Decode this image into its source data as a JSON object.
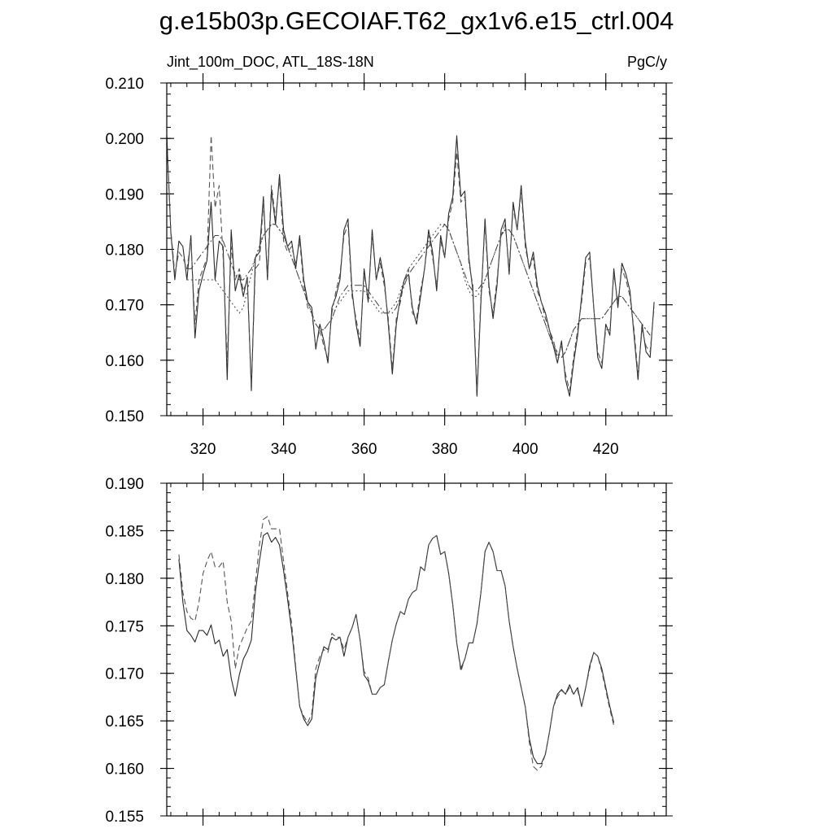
{
  "title": "g.e15b03p.GECOIAF.T62_gx1v6.e15_ctrl.004",
  "chart_data": [
    {
      "type": "line",
      "subtitle_left": "Jint_100m_DOC, ATL_18S-18N",
      "subtitle_right": "PgC/y",
      "xlim": [
        311,
        435
      ],
      "ylim": [
        0.15,
        0.21
      ],
      "yticks": [
        0.15,
        0.16,
        0.17,
        0.18,
        0.19,
        0.2,
        0.21
      ],
      "ytick_labels": [
        "0.150",
        "0.160",
        "0.170",
        "0.180",
        "0.190",
        "0.200",
        "0.210"
      ],
      "xticks": [
        320,
        340,
        360,
        380,
        400,
        420
      ],
      "xtick_labels": [
        "320",
        "340",
        "360",
        "380",
        "400",
        "420"
      ],
      "grid": false,
      "series": [
        {
          "style": "solid",
          "x0": 311,
          "values": [
            0.2005,
            0.183,
            0.1745,
            0.1815,
            0.1805,
            0.1745,
            0.1825,
            0.164,
            0.1725,
            0.1755,
            0.178,
            0.1885,
            0.1745,
            0.1815,
            0.1805,
            0.1565,
            0.1835,
            0.1725,
            0.1755,
            0.1715,
            0.175,
            0.1545,
            0.1785,
            0.1795,
            0.1895,
            0.1745,
            0.1905,
            0.1845,
            0.1935,
            0.1835,
            0.1805,
            0.1815,
            0.1765,
            0.1825,
            0.1745,
            0.1705,
            0.1695,
            0.162,
            0.1665,
            0.1635,
            0.1595,
            0.1695,
            0.1715,
            0.1745,
            0.1835,
            0.1855,
            0.1725,
            0.1665,
            0.1625,
            0.1765,
            0.1705,
            0.1835,
            0.1745,
            0.1785,
            0.1745,
            0.1665,
            0.1575,
            0.1665,
            0.1715,
            0.1745,
            0.1755,
            0.1695,
            0.1665,
            0.1715,
            0.1765,
            0.1835,
            0.1795,
            0.1725,
            0.1825,
            0.1785,
            0.1865,
            0.1895,
            0.2005,
            0.1895,
            0.1905,
            0.1785,
            0.1725,
            0.1535,
            0.1705,
            0.1855,
            0.1735,
            0.1675,
            0.1735,
            0.1835,
            0.1855,
            0.1755,
            0.1885,
            0.1835,
            0.1915,
            0.1815,
            0.1765,
            0.1795,
            0.1735,
            0.1705,
            0.1685,
            0.1655,
            0.1625,
            0.1595,
            0.1635,
            0.1565,
            0.1535,
            0.1595,
            0.1645,
            0.1715,
            0.1785,
            0.1795,
            0.1695,
            0.1605,
            0.1585,
            0.1665,
            0.1645,
            0.1765,
            0.1695,
            0.1775,
            0.1755,
            0.1725,
            0.1645,
            0.1565,
            0.1665,
            0.1615,
            0.1605,
            0.1705
          ]
        },
        {
          "style": "dashed",
          "x0": 311,
          "values": [
            0.2005,
            0.1835,
            0.1755,
            0.1795,
            0.1785,
            0.1765,
            0.1815,
            0.1665,
            0.1745,
            0.1765,
            0.1785,
            0.2005,
            0.1875,
            0.1915,
            0.1785,
            0.1595,
            0.1805,
            0.1745,
            0.1765,
            0.1725,
            0.1745,
            0.1555,
            0.1765,
            0.1775,
            0.1885,
            0.1755,
            0.1915,
            0.1855,
            0.1925,
            0.1815,
            0.1795,
            0.1805,
            0.1775,
            0.1815,
            0.1735,
            0.1695,
            0.1685,
            0.1625,
            0.1655,
            0.1625,
            0.1605,
            0.1685,
            0.1725,
            0.1755,
            0.1825,
            0.1845,
            0.1715,
            0.1675,
            0.1635,
            0.1755,
            0.1715,
            0.1825,
            0.1745,
            0.1775,
            0.1735,
            0.1675,
            0.1585,
            0.1675,
            0.1705,
            0.1745,
            0.1765,
            0.1685,
            0.1675,
            0.1725,
            0.1765,
            0.1825,
            0.1785,
            0.1735,
            0.1815,
            0.1785,
            0.1855,
            0.1885,
            0.1975,
            0.1885,
            0.1895,
            0.1775,
            0.1735,
            0.1545,
            0.1715,
            0.1845,
            0.1725,
            0.1685,
            0.1745,
            0.1825,
            0.1845,
            0.1765,
            0.1875,
            0.1835,
            0.1905,
            0.1805,
            0.1765,
            0.1785,
            0.1725,
            0.1705,
            0.1675,
            0.1655,
            0.1635,
            0.1605,
            0.1625,
            0.1575,
            0.1545,
            0.1605,
            0.1655,
            0.1705,
            0.1775,
            0.1785,
            0.1695,
            0.1615,
            0.1595,
            0.1655,
            0.1655,
            0.1755,
            0.1705,
            0.1765,
            0.1745,
            0.1715,
            0.1655,
            0.1575,
            0.1655,
            0.1625,
            0.1615,
            0.1695
          ]
        },
        {
          "style": "smooth-dashed",
          "x0": 316,
          "values": [
            0.1765,
            0.1765,
            0.1775,
            0.1785,
            0.1795,
            0.1805,
            0.1815,
            0.1825,
            0.1825,
            0.1815,
            0.1795,
            0.1775,
            0.1755,
            0.1745,
            0.1745,
            0.1755,
            0.1765,
            0.1785,
            0.1805,
            0.1825,
            0.1835,
            0.1845,
            0.1845,
            0.1835,
            0.1825,
            0.1805,
            0.1785,
            0.1765,
            0.1745,
            0.1725,
            0.1705,
            0.1685,
            0.1665,
            0.1655,
            0.1655,
            0.1665,
            0.1675,
            0.1695,
            0.1715,
            0.1725,
            0.1735,
            0.1735,
            0.1735,
            0.1735,
            0.1735,
            0.1725,
            0.1715,
            0.1705,
            0.1695,
            0.1685,
            0.1685,
            0.1685,
            0.1695,
            0.1715,
            0.1735,
            0.1755,
            0.1765,
            0.1775,
            0.1785,
            0.1795,
            0.1805,
            0.1815,
            0.1825,
            0.1835,
            0.1845,
            0.1835,
            0.1815,
            0.1795,
            0.1775,
            0.1755,
            0.1735,
            0.1725,
            0.1725,
            0.1735,
            0.1745,
            0.1765,
            0.1785,
            0.1805,
            0.1825,
            0.1835,
            0.1835,
            0.1825,
            0.1805,
            0.1785,
            0.1765,
            0.1745,
            0.1725,
            0.1705,
            0.1685,
            0.1665,
            0.1645,
            0.1625,
            0.1615,
            0.1605,
            0.1615,
            0.1635,
            0.1655,
            0.1665,
            0.1675,
            0.1675,
            0.1675,
            0.1675,
            0.1675,
            0.1675,
            0.1685,
            0.1695,
            0.1705,
            0.1715,
            0.1715,
            0.1705,
            0.1695,
            0.1685,
            0.1675,
            0.1665,
            0.1655,
            0.1645
          ]
        },
        {
          "style": "dotted",
          "x0": 316,
          "values": [
            0.1745,
            0.1745,
            0.1745,
            0.1745,
            0.1745,
            0.1745,
            0.1745,
            0.1745,
            0.1735,
            0.1725,
            0.1715,
            0.1705,
            0.1695,
            0.1685,
            0.1695,
            0.1725,
            0.1755,
            0.1785,
            0.1805,
            0.1825,
            0.1835,
            0.1845,
            0.1845,
            0.1835,
            0.1825,
            0.1805,
            0.1785,
            0.1765,
            0.1745,
            0.1725,
            0.1705,
            0.1685,
            0.1665,
            0.1655,
            0.1655,
            0.1665,
            0.1675,
            0.1695,
            0.1705,
            0.1715,
            0.1725,
            0.1725,
            0.1725,
            0.1725,
            0.1725,
            0.1715,
            0.1705,
            0.1695,
            0.1685,
            0.1685,
            0.1685,
            0.1695,
            0.1705,
            0.1725,
            0.1745,
            0.1765,
            0.1775,
            0.1785,
            0.1795,
            0.1805,
            0.1815,
            0.1825,
            0.1835,
            0.1845,
            0.1845,
            0.1835,
            0.1815,
            0.1795,
            0.1775,
            0.1745,
            0.1725,
            0.1715,
            0.1715,
            0.1725,
            0.1745,
            0.1765,
            0.1785,
            0.1805,
            0.1825,
            0.1835,
            0.1835,
            0.1825,
            0.1805,
            0.1785,
            0.1765,
            0.1745,
            0.1725,
            0.1705,
            0.1685,
            0.1665,
            0.1645,
            0.1625,
            0.1605,
            0.1605,
            0.1615,
            0.1635,
            0.1655,
            0.1665,
            0.1675,
            0.1675,
            0.1675,
            0.1675,
            0.1675,
            0.1675,
            0.1685,
            0.1695,
            0.1705,
            0.1715,
            0.1715,
            0.1705,
            0.1695,
            0.1685,
            0.1675,
            0.1665,
            0.1655,
            0.1645
          ]
        }
      ]
    },
    {
      "type": "line",
      "xlim": [
        311,
        435
      ],
      "ylim": [
        0.155,
        0.19
      ],
      "yticks": [
        0.155,
        0.16,
        0.165,
        0.17,
        0.175,
        0.18,
        0.185,
        0.19
      ],
      "ytick_labels": [
        "0.155",
        "0.160",
        "0.165",
        "0.170",
        "0.175",
        "0.180",
        "0.185",
        "0.190"
      ],
      "xticks": [
        320,
        340,
        360,
        380,
        400,
        420
      ],
      "grid": false,
      "series": [
        {
          "style": "solid",
          "x0": 314,
          "values": [
            0.182,
            0.1775,
            0.1745,
            0.174,
            0.1733,
            0.1745,
            0.1745,
            0.174,
            0.1751,
            0.1731,
            0.1735,
            0.1718,
            0.1725,
            0.1695,
            0.1676,
            0.1698,
            0.1715,
            0.1723,
            0.1735,
            0.1785,
            0.1818,
            0.1845,
            0.1848,
            0.1838,
            0.1843,
            0.1835,
            0.1808,
            0.1778,
            0.1745,
            0.1705,
            0.1665,
            0.1652,
            0.1645,
            0.1652,
            0.1695,
            0.1712,
            0.1728,
            0.1725,
            0.1738,
            0.1735,
            0.1738,
            0.1718,
            0.1738,
            0.1748,
            0.1762,
            0.1735,
            0.1698,
            0.1692,
            0.1678,
            0.1678,
            0.1685,
            0.1688,
            0.1712,
            0.1735,
            0.1752,
            0.1765,
            0.1762,
            0.1778,
            0.1785,
            0.1788,
            0.1812,
            0.1808,
            0.1835,
            0.1842,
            0.1845,
            0.1825,
            0.1828,
            0.1805,
            0.1772,
            0.1732,
            0.1705,
            0.1715,
            0.1732,
            0.1732,
            0.1752,
            0.1785,
            0.1828,
            0.1838,
            0.1828,
            0.1808,
            0.1808,
            0.1792,
            0.1755,
            0.1728,
            0.1705,
            0.1685,
            0.1665,
            0.1632,
            0.1612,
            0.1605,
            0.1605,
            0.1615,
            0.1638,
            0.1665,
            0.1678,
            0.1683,
            0.1678,
            0.1688,
            0.1678,
            0.1685,
            0.1665,
            0.1685,
            0.1708,
            0.1722,
            0.1718,
            0.1705,
            0.1685,
            0.1665,
            0.1648
          ]
        },
        {
          "style": "dashed",
          "x0": 314,
          "values": [
            0.1825,
            0.1785,
            0.1765,
            0.1758,
            0.1755,
            0.1775,
            0.1805,
            0.1818,
            0.1828,
            0.1812,
            0.1812,
            0.1818,
            0.1775,
            0.1755,
            0.1705,
            0.1728,
            0.1738,
            0.1748,
            0.1755,
            0.1795,
            0.1835,
            0.1862,
            0.1865,
            0.1852,
            0.1852,
            0.1852,
            0.1818,
            0.1785,
            0.1752,
            0.1708,
            0.1665,
            0.1655,
            0.1648,
            0.1658,
            0.1705,
            0.1718,
            0.1725,
            0.1722,
            0.1742,
            0.1738,
            0.1738,
            0.1725,
            0.1738,
            0.1748,
            0.1762,
            0.1735,
            0.1702,
            0.1695,
            0.1678,
            0.1678,
            0.1685,
            0.1688,
            0.1712,
            0.1735,
            0.1752,
            0.1765,
            0.1762,
            0.1778,
            0.1785,
            0.1788,
            0.1812,
            0.1808,
            0.1835,
            0.1842,
            0.1845,
            0.1825,
            0.1828,
            0.1805,
            0.1772,
            0.1732,
            0.1702,
            0.1715,
            0.1732,
            0.1732,
            0.1752,
            0.1785,
            0.1828,
            0.1838,
            0.1828,
            0.1808,
            0.1808,
            0.1792,
            0.1755,
            0.1728,
            0.1705,
            0.1685,
            0.1665,
            0.1628,
            0.1602,
            0.1598,
            0.1602,
            0.1615,
            0.1638,
            0.1665,
            0.1675,
            0.1682,
            0.1678,
            0.1685,
            0.1678,
            0.1682,
            0.1665,
            0.1685,
            0.1705,
            0.1722,
            0.1718,
            0.1702,
            0.1682,
            0.1662,
            0.1645
          ]
        }
      ]
    }
  ]
}
